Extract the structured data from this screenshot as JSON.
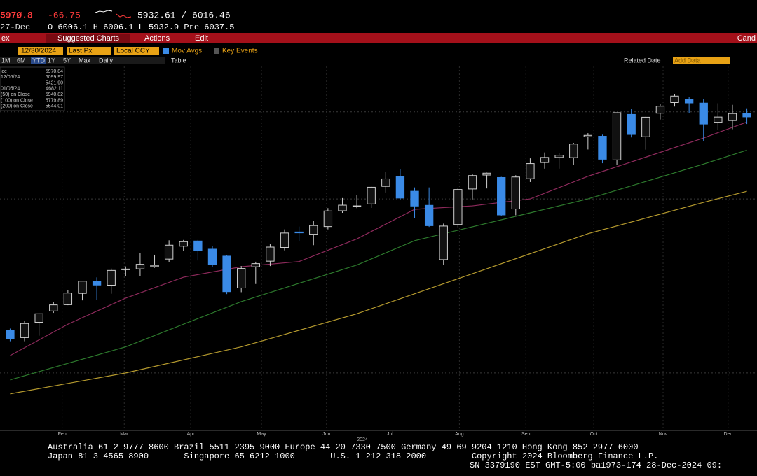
{
  "header": {
    "last": "597Ø.8",
    "change": "-66.75",
    "range": "5932.61 / 6016.46",
    "date": "27-Dec",
    "ohlc": "O 6006.1 H 6006.1 L 5932.9 Pre 6037.5"
  },
  "menu": {
    "left": "ex",
    "items": [
      "Suggested Charts",
      "Actions",
      "Edit"
    ],
    "right": "Cand"
  },
  "controls": {
    "date": "12/30/2024",
    "field": "Last Px",
    "currency": "Local CCY",
    "mov_avgs": "Mov Avgs",
    "key_events": "Key Events"
  },
  "periods": {
    "items": [
      "1M",
      "6M",
      "YTD",
      "1Y",
      "5Y",
      "Max"
    ],
    "frequency": "Daily",
    "table": "Table",
    "related": "Related Date",
    "add": "Add Data"
  },
  "legend": {
    "rows": [
      [
        "ice",
        "5970.84"
      ],
      [
        "12/06/24",
        "6099.97"
      ],
      [
        "",
        "5421.90"
      ],
      [
        "01/05/24",
        "4682.11"
      ],
      [
        "(50)  on Close",
        "5940.82"
      ],
      [
        "(100)  on Close",
        "5779.89"
      ],
      [
        "(200)  on Close",
        "5544.01"
      ]
    ]
  },
  "chart_data": {
    "type": "candlestick",
    "year_label": "2024",
    "x": [
      0,
      1,
      2,
      3,
      4,
      5,
      6,
      7,
      8,
      9,
      10,
      11,
      12,
      13,
      14,
      15,
      16,
      17,
      18,
      19,
      20,
      21,
      22,
      23,
      24,
      25,
      26,
      27,
      28,
      29,
      30,
      31,
      32,
      33,
      34,
      35,
      36,
      37,
      38,
      39,
      40,
      41,
      42,
      43,
      44,
      45,
      46,
      47,
      48,
      49,
      50,
      51
    ],
    "open": [
      4745,
      4703,
      4791,
      4856,
      4892,
      4957,
      5026,
      5004,
      5094,
      5098,
      5111,
      5154,
      5228,
      5258,
      5211,
      5171,
      4988,
      5110,
      5142,
      5221,
      5310,
      5297,
      5341,
      5432,
      5459,
      5471,
      5572,
      5630,
      5544,
      5463,
      5151,
      5353,
      5557,
      5637,
      5623,
      5442,
      5616,
      5709,
      5738,
      5737,
      5857,
      5860,
      5724,
      5985,
      5857,
      5992,
      6053,
      6070,
      6050,
      5940,
      5950,
      5990
    ],
    "high": [
      4755,
      4798,
      4842,
      4907,
      4976,
      5030,
      5049,
      5100,
      5112,
      5190,
      5179,
      5262,
      5264,
      5264,
      5229,
      5176,
      5114,
      5139,
      5239,
      5325,
      5341,
      5375,
      5447,
      5505,
      5524,
      5570,
      5655,
      5670,
      5566,
      5566,
      5358,
      5563,
      5642,
      5651,
      5627,
      5636,
      5733,
      5767,
      5762,
      5822,
      5878,
      5869,
      5996,
      6017,
      5972,
      6044,
      6099,
      6085,
      6071,
      6049,
      6040,
      6020
    ],
    "low": [
      4682,
      4682,
      4714,
      4845,
      4889,
      4917,
      4920,
      4955,
      5056,
      5058,
      5104,
      5138,
      5203,
      5146,
      5107,
      4953,
      4964,
      5011,
      5114,
      5204,
      5256,
      5234,
      5325,
      5420,
      5447,
      5448,
      5537,
      5497,
      5390,
      5339,
      5119,
      5337,
      5497,
      5560,
      5402,
      5406,
      5597,
      5674,
      5674,
      5697,
      5784,
      5705,
      5696,
      5853,
      5783,
      5956,
      6030,
      5994,
      5832,
      5896,
      5900,
      5930
    ],
    "close": [
      4697,
      4784,
      4840,
      4891,
      4959,
      5027,
      5005,
      5089,
      5097,
      5124,
      5118,
      5234,
      5254,
      5204,
      5123,
      4967,
      5100,
      5128,
      5223,
      5304,
      5305,
      5347,
      5431,
      5464,
      5460,
      5567,
      5615,
      5505,
      5459,
      5346,
      5344,
      5554,
      5634,
      5648,
      5408,
      5626,
      5703,
      5738,
      5751,
      5815,
      5865,
      5728,
      5995,
      5870,
      5969,
      6032,
      6090,
      6051,
      5930,
      5970,
      5990,
      5971
    ],
    "up_color": "#d0d0d0",
    "down_color": "#3a8ae6",
    "series": [
      {
        "name": "(50)",
        "color": "#8e2a5c",
        "x": [
          0,
          4,
          8,
          12,
          16,
          20,
          24,
          28,
          32,
          36,
          40,
          44,
          48,
          51
        ],
        "values": [
          4600,
          4780,
          4930,
          5050,
          5110,
          5140,
          5270,
          5440,
          5460,
          5500,
          5630,
          5740,
          5850,
          5941
        ]
      },
      {
        "name": "(100)",
        "color": "#2d7a2d",
        "x": [
          0,
          8,
          16,
          24,
          28,
          32,
          36,
          40,
          44,
          48,
          51
        ],
        "values": [
          4460,
          4650,
          4910,
          5120,
          5260,
          5340,
          5420,
          5500,
          5600,
          5700,
          5780
        ]
      },
      {
        "name": "(200)",
        "color": "#b59a2e",
        "x": [
          0,
          8,
          16,
          24,
          32,
          40,
          48,
          51
        ],
        "values": [
          4380,
          4500,
          4650,
          4840,
          5070,
          5300,
          5480,
          5544
        ]
      }
    ],
    "xlim": [
      -0.7,
      51.7
    ],
    "ylim": [
      4170,
      6260
    ],
    "yticks": [
      4500,
      5000,
      5500,
      6000
    ],
    "grid": true,
    "xticks": [
      {
        "value": 3.6,
        "label": "Feb"
      },
      {
        "value": 7.9,
        "label": "Mar"
      },
      {
        "value": 12.5,
        "label": "Apr"
      },
      {
        "value": 17.4,
        "label": "May"
      },
      {
        "value": 21.9,
        "label": "Jun"
      },
      {
        "value": 26.3,
        "label": "Jul"
      },
      {
        "value": 31.1,
        "label": "Aug"
      },
      {
        "value": 35.7,
        "label": "Sep"
      },
      {
        "value": 40.4,
        "label": "Oct"
      },
      {
        "value": 45.2,
        "label": "Nov"
      },
      {
        "value": 49.7,
        "label": "Dec"
      }
    ]
  },
  "footer": {
    "line1": "Australia 61 2 9777 8600 Brazil 5511 2395 9000 Europe 44 20 7330 7500 Germany 49 69 9204 1210 Hong Kong 852 2977 6000",
    "line2a": "Japan 81 3 4565 8900       Singapore 65 6212 1000       U.S. 1 212 318 2000         Copyright 2024 Bloomberg Finance L.P.",
    "line2b": "SN 3379190 EST  GMT-5:00 ba1973-174 28-Dec-2024 09:"
  }
}
